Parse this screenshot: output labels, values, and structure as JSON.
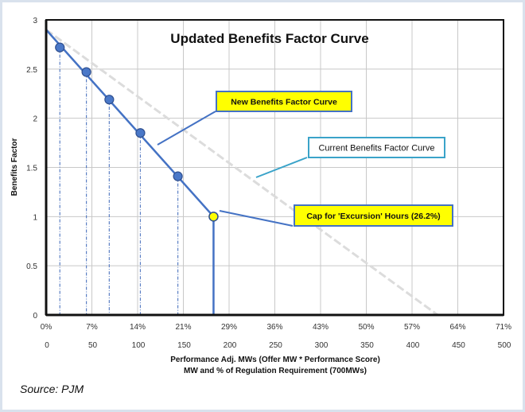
{
  "chart_data": {
    "type": "line",
    "title": "Updated Benefits Factor Curve",
    "ylabel": "Benefits Factor",
    "xlabel": "Performance Adj. MWs (Offer MW * Performance Score)",
    "xlabel2": "MW and % of Regulation Requirement (700MWs)",
    "xlim": [
      0,
      500
    ],
    "ylim": [
      0,
      3
    ],
    "grid": true,
    "y_ticks": [
      0,
      0.5,
      1,
      1.5,
      2,
      2.5,
      3
    ],
    "y_tick_labels": [
      "0",
      "0.5",
      "1",
      "1.5",
      "2",
      "2.5",
      "3"
    ],
    "x_ticks": [
      0,
      50,
      100,
      150,
      200,
      250,
      300,
      350,
      400,
      450,
      500
    ],
    "x_tick_labels": [
      "0",
      "50",
      "100",
      "150",
      "200",
      "250",
      "300",
      "350",
      "400",
      "450",
      "500"
    ],
    "x_pct_tick_labels": [
      "0%",
      "7%",
      "14%",
      "21%",
      "29%",
      "36%",
      "43%",
      "50%",
      "57%",
      "64%",
      "71%"
    ],
    "series": [
      {
        "name": "New Benefits Factor Curve",
        "color": "#4472c4",
        "x": [
          0,
          183
        ],
        "y": [
          2.9,
          1.0
        ],
        "markers": [
          {
            "x": 15,
            "y": 2.72
          },
          {
            "x": 44,
            "y": 2.47
          },
          {
            "x": 69,
            "y": 2.19
          },
          {
            "x": 103,
            "y": 1.85
          },
          {
            "x": 144,
            "y": 1.41
          }
        ],
        "cap_drop": {
          "x": 183,
          "y_from": 1.0,
          "y_to": 0
        }
      },
      {
        "name": "Current Benefits Factor Curve",
        "color": "#d9d9d9",
        "x": [
          0,
          428
        ],
        "y": [
          2.9,
          0
        ]
      }
    ],
    "cap_point": {
      "x": 183,
      "y": 1.0,
      "color": "#ffff00"
    },
    "annotations": [
      {
        "id": "new",
        "text": "New  Benefits Factor Curve",
        "style": "yellow"
      },
      {
        "id": "current",
        "text": "Current Benefits Factor Curve",
        "style": "white"
      },
      {
        "id": "cap",
        "text": "Cap for 'Excursion' Hours (26.2%)",
        "style": "yellow"
      }
    ]
  },
  "source": "Source: PJM"
}
